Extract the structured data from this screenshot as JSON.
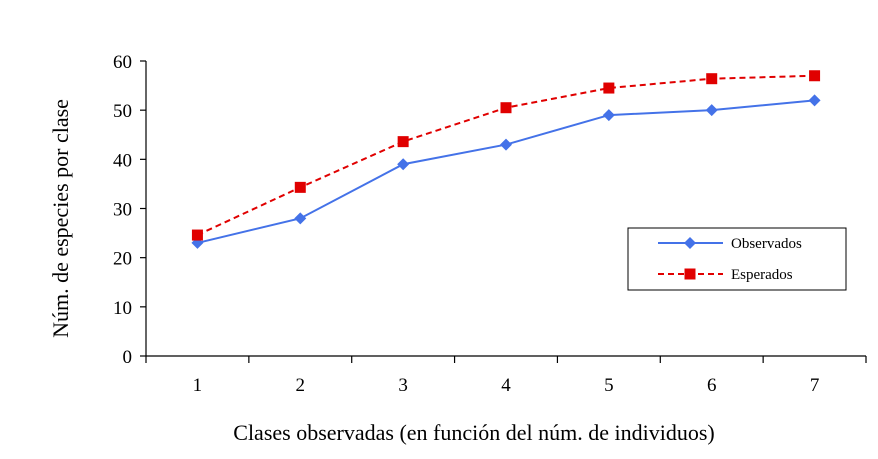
{
  "chart_data": {
    "type": "line",
    "title": "",
    "xlabel": "Clases observadas (en función del núm. de individuos)",
    "ylabel": "Núm. de especies por clase",
    "categories": [
      "1",
      "2",
      "3",
      "4",
      "5",
      "6",
      "7"
    ],
    "ylim": [
      0,
      60
    ],
    "yticks": [
      0,
      10,
      20,
      30,
      40,
      50,
      60
    ],
    "grid": false,
    "legend_position": "right",
    "series": [
      {
        "name": "Observados",
        "values": [
          23,
          28,
          39,
          43,
          49,
          50,
          52
        ],
        "color": "#4472E8",
        "marker": "diamond",
        "line_style": "solid"
      },
      {
        "name": "Esperados",
        "values": [
          24.6,
          34.3,
          43.6,
          50.5,
          54.5,
          56.4,
          57
        ],
        "color": "#E00000",
        "marker": "square",
        "line_style": "dashed"
      }
    ]
  }
}
